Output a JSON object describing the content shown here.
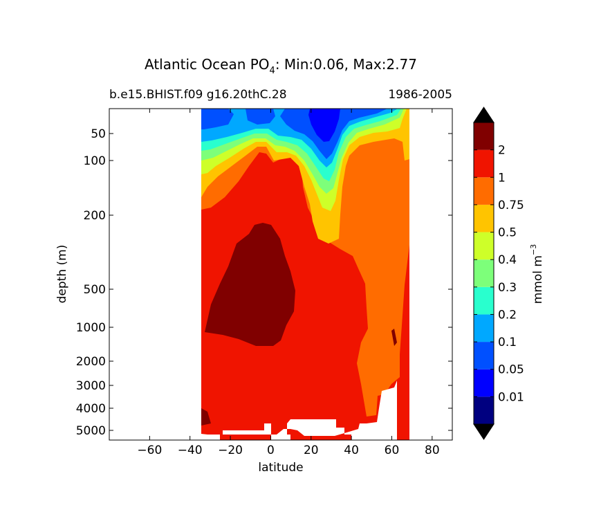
{
  "chart_data": {
    "type": "contour",
    "title": "Atlantic Ocean PO",
    "title_subscript": "4",
    "title_stats": ": Min:0.06, Max:2.77",
    "subtitle_left": "b.e15.BHIST.f09 g16.20thC.28",
    "subtitle_right": "1986-2005",
    "xlabel": "latitude",
    "ylabel": "depth (m)",
    "xlim": [
      -80,
      90
    ],
    "x_ticks": [
      -60,
      -40,
      -20,
      0,
      20,
      40,
      60,
      80
    ],
    "y_ticks": [
      50,
      100,
      200,
      500,
      1000,
      2000,
      3000,
      4000,
      5000
    ],
    "colorbar_label": "mmol m",
    "colorbar_label_exponent": "−3",
    "contour_levels": [
      0.01,
      0.05,
      0.1,
      0.2,
      0.3,
      0.4,
      0.5,
      0.75,
      1,
      2
    ],
    "colorbar_tick_labels": [
      "0.01",
      "0.05",
      "0.1",
      "0.2",
      "0.3",
      "0.4",
      "0.5",
      "0.75",
      "1",
      "2"
    ],
    "colors": [
      "#000080",
      "#0000ff",
      "#0050ff",
      "#00a8ff",
      "#29ffce",
      "#7dff7a",
      "#ceff29",
      "#ffc400",
      "#ff6c00",
      "#f01400",
      "#800000"
    ],
    "extend": "both"
  }
}
